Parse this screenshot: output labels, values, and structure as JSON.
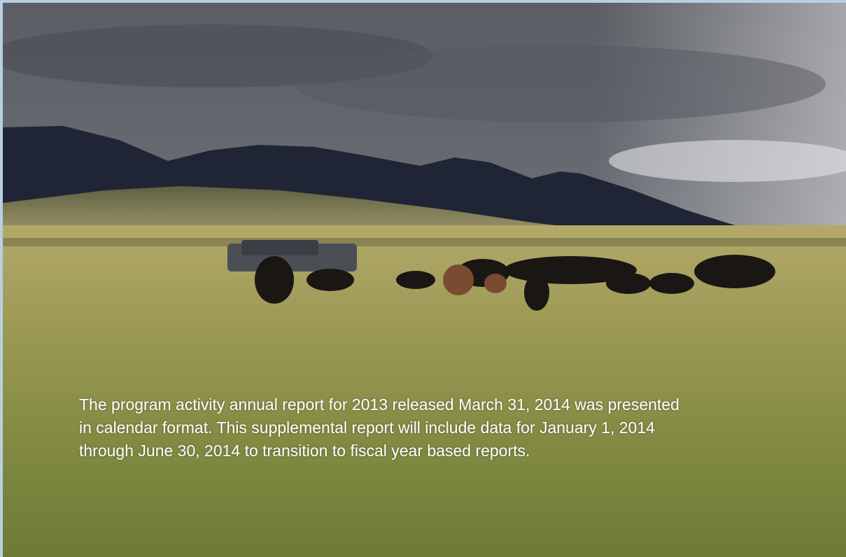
{
  "caption": {
    "lines": [
      "The program activity annual report for 2013 released March 31, 2014 was presented",
      "in calendar format.  This supplemental report will include data for January 1, 2014",
      "through June 30, 2014 to transition to fiscal year based reports."
    ]
  }
}
